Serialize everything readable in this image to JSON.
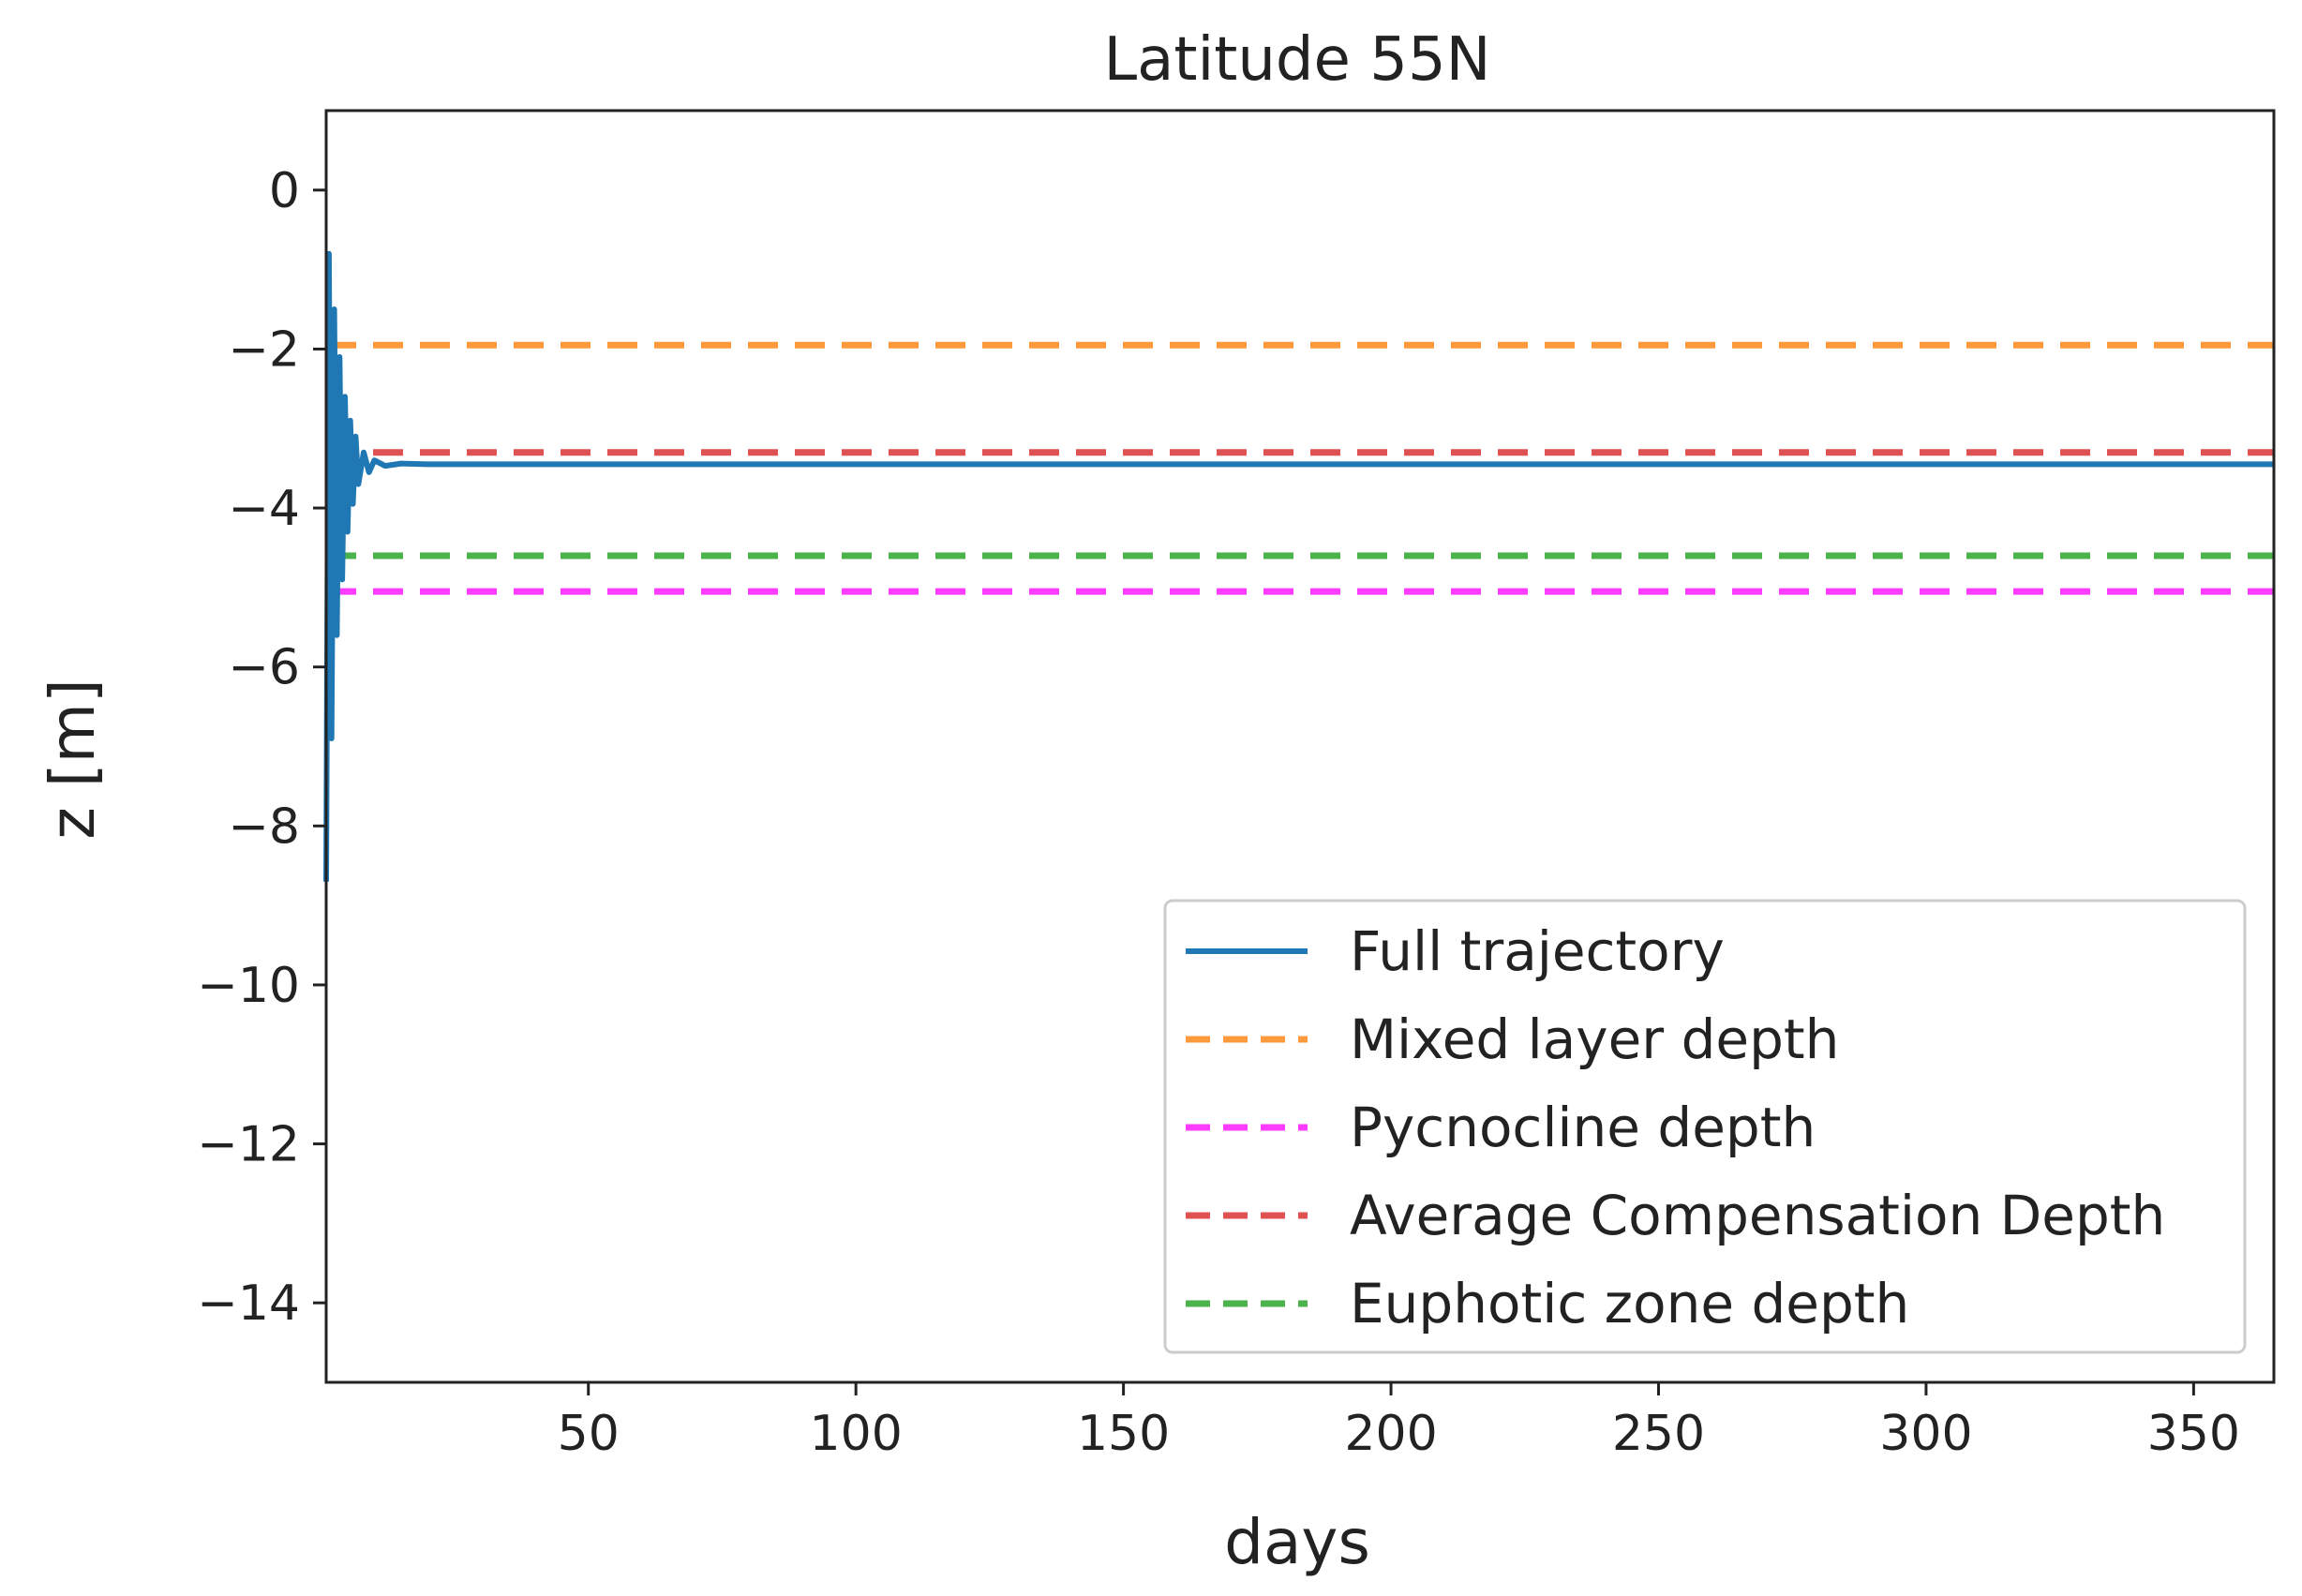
{
  "chart_data": {
    "type": "line",
    "title": "Latitude 55N",
    "xlabel": "days",
    "ylabel": "z [m]",
    "xlim": [
      1,
      365
    ],
    "ylim": [
      -15,
      1
    ],
    "xticks": [
      50,
      100,
      150,
      200,
      250,
      300,
      350
    ],
    "yticks": [
      0,
      -2,
      -4,
      -6,
      -8,
      -10,
      -12,
      -14
    ],
    "grid": false,
    "legend_position": "lower-right",
    "series": [
      {
        "name": "Full trajectory",
        "style": "solid",
        "color": "#1f77b4",
        "x": [
          1,
          1.5,
          2,
          2.5,
          3,
          3.5,
          4,
          4.5,
          5,
          5.5,
          6,
          6.5,
          7,
          8,
          9,
          10,
          12,
          15,
          20,
          50,
          100,
          150,
          200,
          250,
          300,
          365
        ],
        "y": [
          -8.7,
          -0.8,
          -6.9,
          -1.5,
          -5.6,
          -2.1,
          -4.9,
          -2.6,
          -4.3,
          -2.9,
          -3.95,
          -3.1,
          -3.7,
          -3.3,
          -3.55,
          -3.4,
          -3.47,
          -3.44,
          -3.45,
          -3.45,
          -3.45,
          -3.45,
          -3.45,
          -3.45,
          -3.45,
          -3.45
        ]
      },
      {
        "name": "Mixed layer depth",
        "style": "dashed",
        "color": "#ff9a3c",
        "x": [
          1,
          365
        ],
        "y": [
          -1.95,
          -1.95
        ]
      },
      {
        "name": "Pycnocline depth",
        "style": "dashed",
        "color": "#ff3cff",
        "x": [
          1,
          365
        ],
        "y": [
          -5.05,
          -5.05
        ]
      },
      {
        "name": "Average Compensation Depth",
        "style": "dashed",
        "color": "#e05252",
        "x": [
          1,
          365
        ],
        "y": [
          -3.3,
          -3.3
        ]
      },
      {
        "name": "Euphotic zone depth",
        "style": "dashed",
        "color": "#4cb24c",
        "x": [
          1,
          365
        ],
        "y": [
          -4.6,
          -4.6
        ]
      }
    ]
  }
}
